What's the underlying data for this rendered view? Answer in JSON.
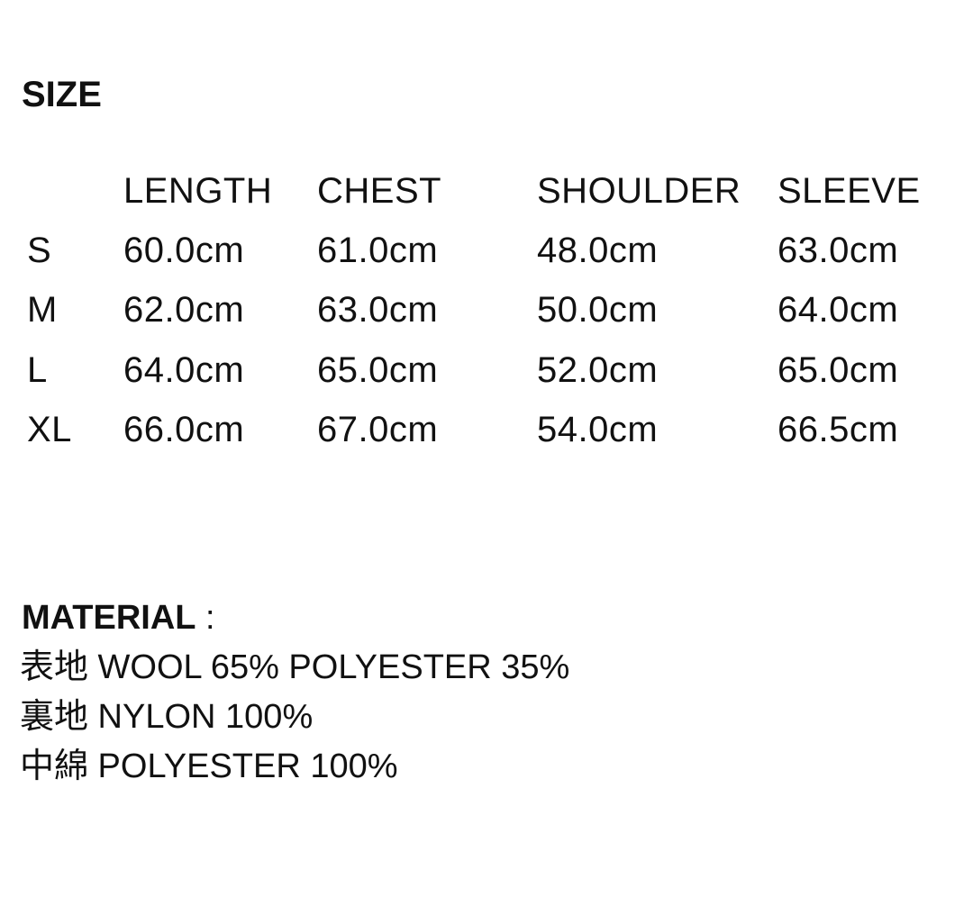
{
  "size": {
    "title": "SIZE",
    "columns": [
      "",
      "LENGTH",
      "CHEST",
      "SHOULDER",
      "SLEEVE"
    ],
    "rows": [
      [
        "S",
        "60.0cm",
        "61.0cm",
        "48.0cm",
        "63.0cm"
      ],
      [
        "M",
        "62.0cm",
        "63.0cm",
        "50.0cm",
        "64.0cm"
      ],
      [
        "L",
        "64.0cm",
        "65.0cm",
        "52.0cm",
        "65.0cm"
      ],
      [
        "XL",
        "66.0cm",
        "67.0cm",
        "54.0cm",
        "66.5cm"
      ]
    ]
  },
  "material": {
    "title": "MATERIAL",
    "separator": " :",
    "lines": [
      "表地 WOOL 65% POLYESTER 35%",
      "裏地 NYLON 100%",
      "中綿 POLYESTER 100%"
    ]
  }
}
